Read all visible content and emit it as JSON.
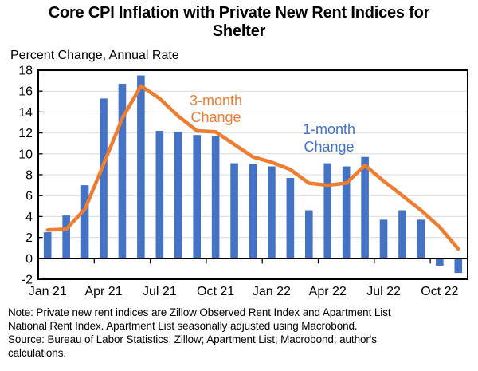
{
  "title": {
    "lines": [
      "Core CPI Inflation with Private New Rent Indices for",
      "Shelter"
    ]
  },
  "subtitle": "Percent Change, Annual Rate",
  "note": {
    "lines": [
      "Note: Private new rent indices are Zillow Observed Rent Index and Apartment List",
      "National Rent Index. Apartment List seasonally adjusted using Macrobond.",
      "Source: Bureau of Labor Statistics; Zillow; Apartment List; Macrobond; author's",
      "calculations."
    ]
  },
  "chart_data": {
    "type": "bar",
    "subtype": "bar-with-line-overlay",
    "categories": [
      "Jan 21",
      "Feb 21",
      "Mar 21",
      "Apr 21",
      "May 21",
      "Jun 21",
      "Jul 21",
      "Aug 21",
      "Sep 21",
      "Oct 21",
      "Nov 21",
      "Dec 21",
      "Jan 22",
      "Feb 22",
      "Mar 22",
      "Apr 22",
      "May 22",
      "Jun 22",
      "Jul 22",
      "Aug 22",
      "Sep 22",
      "Oct 22",
      "Nov 22"
    ],
    "x_tick_labels": [
      "Jan 21",
      "Apr 21",
      "Jul 21",
      "Oct 21",
      "Jan 22",
      "Apr 22",
      "Jul 22",
      "Oct 22"
    ],
    "x_tick_indices": [
      0,
      3,
      6,
      9,
      12,
      15,
      18,
      21
    ],
    "series": [
      {
        "name": "1-month Change",
        "type": "bar",
        "color": "#4472C4",
        "values": [
          2.5,
          4.1,
          7.0,
          15.3,
          16.7,
          17.5,
          12.2,
          12.1,
          11.8,
          11.7,
          9.1,
          9.0,
          8.8,
          7.7,
          4.6,
          9.1,
          8.8,
          9.7,
          3.7,
          4.6,
          3.7,
          -0.7,
          -1.4
        ]
      },
      {
        "name": "3-month Change",
        "type": "line",
        "color": "#ED7D31",
        "values": [
          2.7,
          2.8,
          4.7,
          9.0,
          13.4,
          16.5,
          15.3,
          13.6,
          12.2,
          12.1,
          10.9,
          9.7,
          9.2,
          8.5,
          7.2,
          7.0,
          7.2,
          8.9,
          7.4,
          6.0,
          4.6,
          3.0,
          0.9
        ]
      }
    ],
    "ylim": [
      -2,
      18
    ],
    "y_ticks": [
      18,
      16,
      14,
      12,
      10,
      8,
      6,
      4,
      2,
      0,
      -2
    ],
    "grid": "horizontal",
    "legend_position": "none",
    "annotations": [
      {
        "lines": [
          "3-month",
          "Change"
        ],
        "color": "#ED7D31",
        "x": 271,
        "y": 132,
        "line_height": 21
      },
      {
        "lines": [
          "1-month",
          "Change"
        ],
        "color": "#4472C4",
        "x": 413,
        "y": 168,
        "line_height": 22
      }
    ],
    "colors": {
      "bar": "#4472C4",
      "line": "#ED7D31",
      "grid": "#D9D9D9",
      "axis": "#000000",
      "text": "#000000"
    }
  }
}
